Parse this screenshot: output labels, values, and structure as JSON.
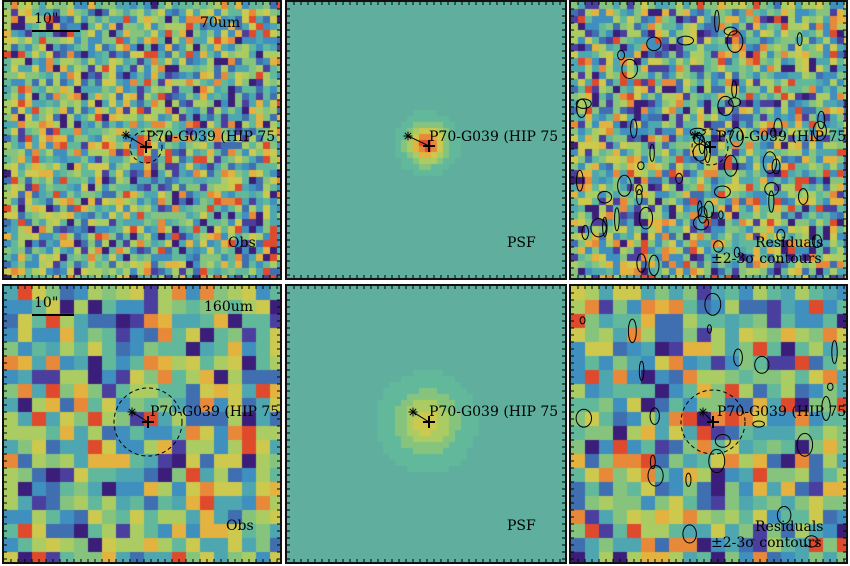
{
  "figure": {
    "rows": [
      {
        "band": "70um",
        "scale_bar_label": "10\"",
        "panels": [
          {
            "kind": "obs",
            "corner_label": "Obs",
            "source_label": "P70-G039 (HIP 75"
          },
          {
            "kind": "psf",
            "corner_label": "PSF",
            "source_label": "P70-G039 (HIP 75"
          },
          {
            "kind": "residual",
            "corner_label": "Residuals",
            "corner_label2": "±2-3σ contours",
            "source_label": "P70-G039 (HIP 75"
          }
        ]
      },
      {
        "band": "160um",
        "scale_bar_label": "10\"",
        "panels": [
          {
            "kind": "obs",
            "corner_label": "Obs",
            "source_label": "P70-G039 (HIP 75"
          },
          {
            "kind": "psf",
            "corner_label": "PSF",
            "source_label": "P70-G039 (HIP 75"
          },
          {
            "kind": "residual",
            "corner_label": "Residuals",
            "corner_label2": "±2-3σ contours",
            "source_label": "P70-G039 (HIP 75"
          }
        ]
      }
    ]
  },
  "colors": {
    "frame": "#111111",
    "psf_background": "#5fae9e",
    "colormap": [
      "#3b1e7a",
      "#4a3f9e",
      "#3f6fb0",
      "#3f8fbf",
      "#4ea6b0",
      "#62b89a",
      "#86c47e",
      "#aacc63",
      "#cdc84e",
      "#e3b23f",
      "#e8893a",
      "#e04a2c"
    ]
  }
}
